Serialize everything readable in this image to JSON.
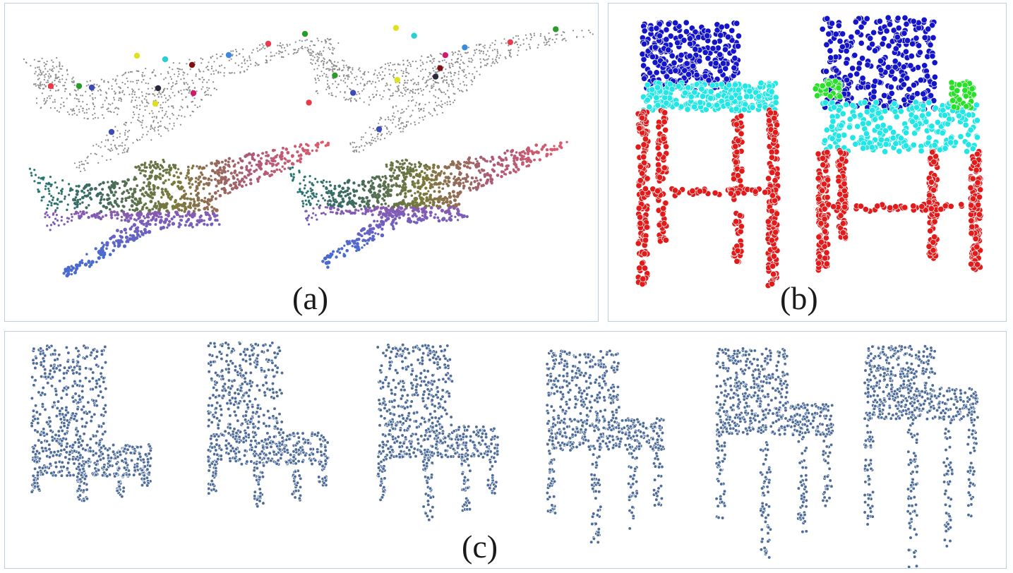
{
  "captions": {
    "a": "(a)",
    "b": "(b)",
    "c": "(c)"
  },
  "colors": {
    "frame": "#b8d0dc",
    "sparse_points": "#8a8a8a",
    "chair_back": "#1414c8",
    "chair_seat": "#21e6e6",
    "chair_legs": "#e21a1a",
    "chair_arms": "#28e028",
    "interp_points": "#4f6d9a",
    "gradient": [
      "#1f7a7a",
      "#3f6a60",
      "#7a7a3a",
      "#b05a78",
      "#e05a6a",
      "#8a5ab0",
      "#4a6ad0"
    ],
    "keypoints": [
      "#e83a4a",
      "#2a9a2a",
      "#3a4ab8",
      "#e0e020",
      "#2ad0d0",
      "#801010",
      "#2a2a3a",
      "#d01a6a",
      "#3a8ae0"
    ]
  }
}
